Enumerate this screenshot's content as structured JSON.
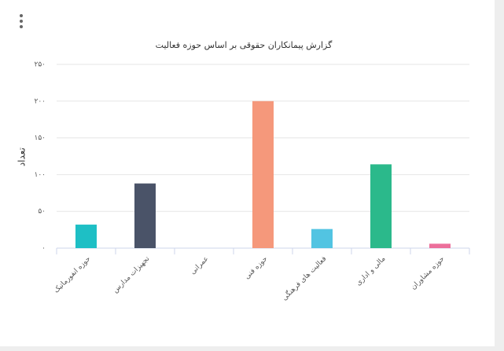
{
  "chart_data": {
    "type": "bar",
    "title": "گزارش پیمانکاران حقوقی بر اساس حوزه فعالیت",
    "y_label": "تعداد",
    "categories": [
      "حوزه انفورماتیک",
      "تجهیزات مدارس",
      "عمرانی",
      "حوزه فنی",
      "فعالیت های فرهنگی",
      "مالی و اداری",
      "حوزه مشاوران"
    ],
    "values": [
      32,
      88,
      0,
      200,
      26,
      114,
      6
    ],
    "colors": [
      "#1ebfc5",
      "#4a5368",
      "#9aa0a6",
      "#f5987b",
      "#52c4e2",
      "#2bb98b",
      "#ec6f9b"
    ],
    "ylim": [
      0,
      250
    ],
    "yticks": [
      {
        "value": 0,
        "label": "۰"
      },
      {
        "value": 50,
        "label": "۵۰"
      },
      {
        "value": 100,
        "label": "۱۰۰"
      },
      {
        "value": 150,
        "label": "۱۵۰"
      },
      {
        "value": 200,
        "label": "۲۰۰"
      },
      {
        "value": 250,
        "label": "۲۵۰"
      }
    ],
    "grid": true
  }
}
